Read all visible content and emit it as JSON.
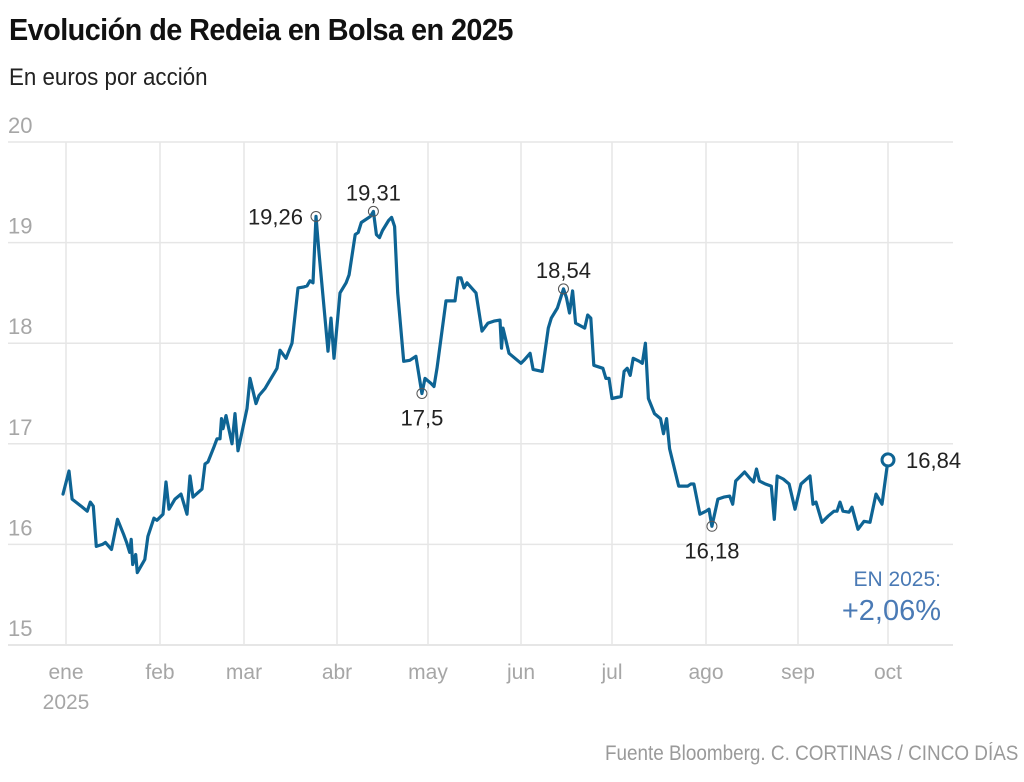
{
  "header": {
    "title": "Evolución de Redeia en Bolsa en 2025",
    "subtitle": "En euros por acción"
  },
  "footer": {
    "source": "Fuente Bloomberg. C. CORTINAS / CINCO DÍAS"
  },
  "colors": {
    "line": "#0e6494",
    "grid": "#e6e6e6",
    "tick_text": "#a6a6a6",
    "annotation_text": "#222222",
    "highlight": "#4a7ab5"
  },
  "chart_data": {
    "type": "line",
    "title": "Evolución de Redeia en Bolsa en 2025",
    "subtitle": "En euros por acción",
    "xlabel": "",
    "ylabel": "",
    "ylim": [
      15,
      20
    ],
    "yticks": [
      "20",
      "19",
      "18",
      "17",
      "16",
      "15"
    ],
    "ytick_values": [
      20,
      19,
      18,
      17,
      16,
      15
    ],
    "x_unit": "day of year 2025",
    "xlim": [
      0,
      293
    ],
    "xticks": [
      {
        "label": "ene",
        "sublabel": "2025",
        "day": 0
      },
      {
        "label": "feb",
        "day": 31
      },
      {
        "label": "mar",
        "day": 59
      },
      {
        "label": "abr",
        "day": 90
      },
      {
        "label": "may",
        "day": 120
      },
      {
        "label": "jun",
        "day": 151
      },
      {
        "label": "jul",
        "day": 181
      },
      {
        "label": "ago",
        "day": 212
      },
      {
        "label": "sep",
        "day": 243
      },
      {
        "label": "oct",
        "day": 273
      }
    ],
    "grid": true,
    "series": [
      {
        "name": "Redeia",
        "points": [
          [
            -1,
            16.5
          ],
          [
            1,
            16.73
          ],
          [
            2,
            16.45
          ],
          [
            5,
            16.38
          ],
          [
            7,
            16.33
          ],
          [
            8,
            16.42
          ],
          [
            9,
            16.38
          ],
          [
            10,
            15.98
          ],
          [
            12,
            16.0
          ],
          [
            13,
            16.02
          ],
          [
            15,
            15.95
          ],
          [
            17,
            16.25
          ],
          [
            19,
            16.1
          ],
          [
            20,
            16.02
          ],
          [
            21,
            15.92
          ],
          [
            21.5,
            16.05
          ],
          [
            22,
            15.8
          ],
          [
            23,
            15.9
          ],
          [
            23.5,
            15.72
          ],
          [
            26,
            15.85
          ],
          [
            27,
            16.08
          ],
          [
            29,
            16.26
          ],
          [
            30,
            16.24
          ],
          [
            32,
            16.3
          ],
          [
            33,
            16.62
          ],
          [
            34,
            16.35
          ],
          [
            36,
            16.45
          ],
          [
            38,
            16.5
          ],
          [
            40,
            16.3
          ],
          [
            41,
            16.68
          ],
          [
            42,
            16.47
          ],
          [
            45,
            16.55
          ],
          [
            46,
            16.8
          ],
          [
            47,
            16.82
          ],
          [
            49,
            16.97
          ],
          [
            50,
            17.05
          ],
          [
            51,
            17.05
          ],
          [
            51.5,
            17.25
          ],
          [
            52,
            17.15
          ],
          [
            53,
            17.28
          ],
          [
            55,
            17.0
          ],
          [
            56,
            17.3
          ],
          [
            57,
            16.93
          ],
          [
            60,
            17.35
          ],
          [
            61,
            17.65
          ],
          [
            63,
            17.4
          ],
          [
            64,
            17.48
          ],
          [
            66,
            17.55
          ],
          [
            67,
            17.6
          ],
          [
            69,
            17.7
          ],
          [
            70,
            17.75
          ],
          [
            71,
            17.93
          ],
          [
            73,
            17.85
          ],
          [
            75,
            18.0
          ],
          [
            77,
            18.55
          ],
          [
            79,
            18.56
          ],
          [
            80,
            18.57
          ],
          [
            81,
            18.62
          ],
          [
            82,
            18.6
          ],
          [
            83,
            19.26
          ],
          [
            84,
            18.9
          ],
          [
            86,
            18.25
          ],
          [
            87,
            17.92
          ],
          [
            88,
            18.25
          ],
          [
            89,
            17.85
          ],
          [
            91,
            18.5
          ],
          [
            93,
            18.6
          ],
          [
            94,
            18.68
          ],
          [
            96,
            19.08
          ],
          [
            97,
            19.1
          ],
          [
            98,
            19.2
          ],
          [
            101,
            19.26
          ],
          [
            102,
            19.31
          ],
          [
            103,
            19.08
          ],
          [
            104,
            19.05
          ],
          [
            105,
            19.12
          ],
          [
            107,
            19.22
          ],
          [
            108,
            19.25
          ],
          [
            109,
            19.16
          ],
          [
            110,
            18.5
          ],
          [
            112,
            17.82
          ],
          [
            114,
            17.83
          ],
          [
            116,
            17.87
          ],
          [
            118,
            17.5
          ],
          [
            119,
            17.65
          ],
          [
            121,
            17.6
          ],
          [
            122,
            17.57
          ],
          [
            123,
            17.75
          ],
          [
            126,
            18.42
          ],
          [
            129,
            18.42
          ],
          [
            130,
            18.65
          ],
          [
            131,
            18.65
          ],
          [
            132,
            18.55
          ],
          [
            133,
            18.6
          ],
          [
            136,
            18.5
          ],
          [
            138,
            18.12
          ],
          [
            140,
            18.2
          ],
          [
            142,
            18.22
          ],
          [
            144,
            18.23
          ],
          [
            144.5,
            17.95
          ],
          [
            145,
            18.15
          ],
          [
            147,
            17.9
          ],
          [
            149,
            17.85
          ],
          [
            151,
            17.8
          ],
          [
            152,
            17.83
          ],
          [
            154,
            17.9
          ],
          [
            155,
            17.74
          ],
          [
            158,
            17.72
          ],
          [
            160,
            18.15
          ],
          [
            161,
            18.25
          ],
          [
            163,
            18.35
          ],
          [
            165,
            18.54
          ],
          [
            166,
            18.45
          ],
          [
            167,
            18.3
          ],
          [
            168,
            18.52
          ],
          [
            169,
            18.2
          ],
          [
            172,
            18.15
          ],
          [
            173,
            18.28
          ],
          [
            174,
            18.25
          ],
          [
            175,
            17.78
          ],
          [
            178,
            17.75
          ],
          [
            179,
            17.65
          ],
          [
            180,
            17.65
          ],
          [
            181,
            17.45
          ],
          [
            184,
            17.47
          ],
          [
            185,
            17.72
          ],
          [
            186,
            17.75
          ],
          [
            187,
            17.68
          ],
          [
            188,
            17.85
          ],
          [
            190,
            17.82
          ],
          [
            191,
            17.8
          ],
          [
            192,
            18.0
          ],
          [
            193,
            17.45
          ],
          [
            195,
            17.3
          ],
          [
            197,
            17.25
          ],
          [
            198,
            17.1
          ],
          [
            199,
            17.25
          ],
          [
            200,
            16.95
          ],
          [
            203,
            16.58
          ],
          [
            206,
            16.58
          ],
          [
            207,
            16.6
          ],
          [
            208,
            16.6
          ],
          [
            210,
            16.3
          ],
          [
            212,
            16.33
          ],
          [
            213,
            16.35
          ],
          [
            214,
            16.18
          ],
          [
            216,
            16.45
          ],
          [
            218,
            16.47
          ],
          [
            220,
            16.48
          ],
          [
            221,
            16.4
          ],
          [
            222,
            16.63
          ],
          [
            225,
            16.72
          ],
          [
            227,
            16.65
          ],
          [
            228,
            16.62
          ],
          [
            229,
            16.75
          ],
          [
            230,
            16.63
          ],
          [
            232,
            16.6
          ],
          [
            234,
            16.58
          ],
          [
            235,
            16.25
          ],
          [
            236,
            16.68
          ],
          [
            238,
            16.65
          ],
          [
            240,
            16.6
          ],
          [
            242,
            16.35
          ],
          [
            244,
            16.6
          ],
          [
            247,
            16.68
          ],
          [
            248,
            16.4
          ],
          [
            249,
            16.42
          ],
          [
            251,
            16.22
          ],
          [
            253,
            16.28
          ],
          [
            255,
            16.33
          ],
          [
            256,
            16.33
          ],
          [
            257,
            16.42
          ],
          [
            258,
            16.33
          ],
          [
            260,
            16.32
          ],
          [
            261,
            16.37
          ],
          [
            263,
            16.15
          ],
          [
            265,
            16.23
          ],
          [
            267,
            16.22
          ],
          [
            269,
            16.5
          ],
          [
            271,
            16.4
          ],
          [
            273,
            16.84
          ]
        ]
      }
    ],
    "annotations": [
      {
        "label": "19,26",
        "day": 83,
        "value": 19.26,
        "position": "left"
      },
      {
        "label": "19,31",
        "day": 102,
        "value": 19.31,
        "position": "top"
      },
      {
        "label": "17,5",
        "day": 118,
        "value": 17.5,
        "position": "bottom"
      },
      {
        "label": "18,54",
        "day": 165,
        "value": 18.54,
        "position": "top"
      },
      {
        "label": "16,18",
        "day": 214,
        "value": 16.18,
        "position": "bottom"
      },
      {
        "label": "16,84",
        "day": 273,
        "value": 16.84,
        "position": "right",
        "endpoint": true
      }
    ],
    "ytd": {
      "label": "EN 2025:",
      "value": "+2,06%"
    }
  }
}
